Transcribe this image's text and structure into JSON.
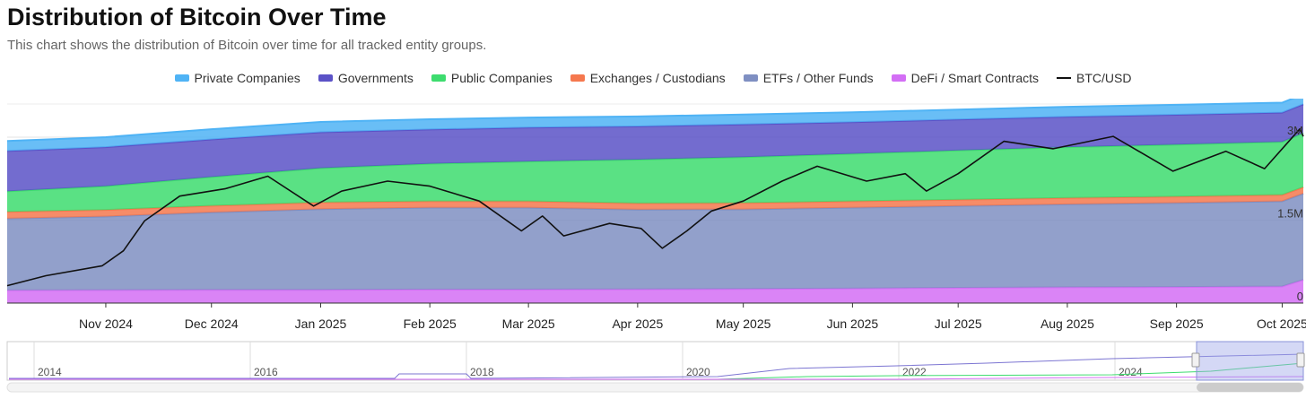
{
  "header": {
    "title": "Distribution of Bitcoin Over Time",
    "subtitle": "This chart shows the distribution of Bitcoin over time for all tracked entity groups."
  },
  "legend": [
    {
      "label": "Private Companies",
      "color": "#4fb3f5",
      "kind": "area"
    },
    {
      "label": "Governments",
      "color": "#5b52c7",
      "kind": "area"
    },
    {
      "label": "Public Companies",
      "color": "#3ddc6e",
      "kind": "area"
    },
    {
      "label": "Exchanges / Custodians",
      "color": "#f5784e",
      "kind": "area"
    },
    {
      "label": "ETFs / Other Funds",
      "color": "#7f8fc2",
      "kind": "area"
    },
    {
      "label": "DeFi / Smart Contracts",
      "color": "#d36ef5",
      "kind": "area"
    },
    {
      "label": "BTC/USD",
      "color": "#111111",
      "kind": "line"
    }
  ],
  "chart_data": {
    "type": "area",
    "stacked": true,
    "title": "Distribution of Bitcoin Over Time",
    "x_start": "2024-10-04",
    "x_end": "2025-10-07",
    "x_tick_labels": [
      "Nov 2024",
      "Dec 2024",
      "Jan 2025",
      "Feb 2025",
      "Mar 2025",
      "Apr 2025",
      "May 2025",
      "Jun 2025",
      "Jul 2025",
      "Aug 2025",
      "Sep 2025",
      "Oct 2025"
    ],
    "x_tick_dates": [
      "2024-11-01",
      "2024-12-01",
      "2025-01-01",
      "2025-02-01",
      "2025-03-01",
      "2025-04-01",
      "2025-05-01",
      "2025-06-01",
      "2025-07-01",
      "2025-08-01",
      "2025-09-01",
      "2025-10-01"
    ],
    "y_tick_labels": [
      "0",
      "1.5M",
      "3M"
    ],
    "y_ticks": [
      0,
      1500000,
      3000000
    ],
    "y_range": [
      0,
      3600000
    ],
    "grid": true,
    "legend_position": "top",
    "x": [
      "2024-10-04",
      "2024-11-01",
      "2024-12-01",
      "2025-01-01",
      "2025-02-01",
      "2025-03-01",
      "2025-04-01",
      "2025-05-01",
      "2025-06-01",
      "2025-07-01",
      "2025-08-01",
      "2025-09-01",
      "2025-10-01",
      "2025-10-07"
    ],
    "series": [
      {
        "name": "DeFi / Smart Contracts",
        "color": "#d36ef5",
        "values": [
          230000,
          235000,
          240000,
          240000,
          245000,
          245000,
          250000,
          255000,
          265000,
          275000,
          285000,
          290000,
          300000,
          420000
        ]
      },
      {
        "name": "ETFs / Other Funds",
        "color": "#7f8fc2",
        "values": [
          1300000,
          1330000,
          1400000,
          1460000,
          1480000,
          1480000,
          1440000,
          1440000,
          1460000,
          1480000,
          1500000,
          1520000,
          1540000,
          1560000
        ]
      },
      {
        "name": "Exchanges / Custodians",
        "color": "#f5784e",
        "values": [
          120000,
          120000,
          120000,
          120000,
          115000,
          115000,
          115000,
          115000,
          115000,
          115000,
          115000,
          115000,
          115000,
          115000
        ]
      },
      {
        "name": "Public Companies",
        "color": "#3ddc6e",
        "values": [
          370000,
          430000,
          520000,
          620000,
          680000,
          720000,
          790000,
          830000,
          860000,
          890000,
          920000,
          940000,
          960000,
          980000
        ]
      },
      {
        "name": "Governments",
        "color": "#5b52c7",
        "values": [
          730000,
          705000,
          680000,
          650000,
          620000,
          615000,
          600000,
          590000,
          570000,
          560000,
          550000,
          540000,
          530000,
          520000
        ]
      },
      {
        "name": "Private Companies",
        "color": "#4fb3f5",
        "values": [
          180000,
          180000,
          185000,
          185000,
          185000,
          180000,
          180000,
          180000,
          180000,
          180000,
          180000,
          180000,
          180000,
          180000
        ]
      }
    ],
    "btc_usd": {
      "name": "BTC/USD",
      "color": "#111111",
      "x": [
        "2024-10-04",
        "2024-10-15",
        "2024-10-31",
        "2024-11-06",
        "2024-11-12",
        "2024-11-22",
        "2024-12-05",
        "2024-12-17",
        "2024-12-30",
        "2025-01-07",
        "2025-01-20",
        "2025-02-01",
        "2025-02-15",
        "2025-02-27",
        "2025-03-05",
        "2025-03-11",
        "2025-03-24",
        "2025-04-02",
        "2025-04-08",
        "2025-04-15",
        "2025-04-22",
        "2025-05-01",
        "2025-05-12",
        "2025-05-22",
        "2025-06-05",
        "2025-06-16",
        "2025-06-22",
        "2025-07-01",
        "2025-07-14",
        "2025-07-28",
        "2025-08-14",
        "2025-08-31",
        "2025-09-15",
        "2025-09-26",
        "2025-10-06",
        "2025-10-07"
      ],
      "values": [
        62000,
        66000,
        70000,
        76000,
        88000,
        98000,
        101000,
        106000,
        94000,
        100000,
        104000,
        102000,
        96000,
        84000,
        90000,
        82000,
        87000,
        85000,
        77000,
        84000,
        92000,
        96000,
        104000,
        110000,
        104000,
        107000,
        100000,
        107000,
        120000,
        117000,
        122000,
        108000,
        116000,
        109000,
        125000,
        122000
      ],
      "y_range": [
        55000,
        135000
      ]
    }
  },
  "navigator": {
    "year_labels": [
      "2014",
      "2016",
      "2018",
      "2020",
      "2022",
      "2024"
    ]
  }
}
